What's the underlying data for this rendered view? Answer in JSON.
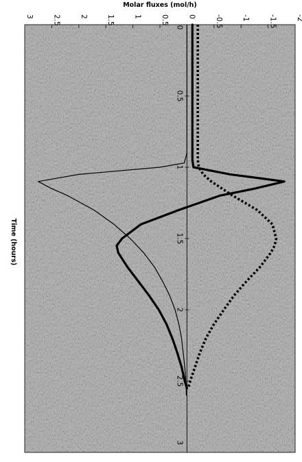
{
  "chart_data": {
    "type": "line",
    "orientation": "rotated-90-clockwise",
    "xlabel": "Time (hours)",
    "ylabel": "Molar fluxes (mol/h)",
    "xlim": [
      0,
      3
    ],
    "ylim": [
      -2,
      3
    ],
    "x_ticks": [
      "0",
      "0.5",
      "1",
      "1.5",
      "2",
      "2.5",
      "3"
    ],
    "y_ticks": [
      "-2",
      "-1.5",
      "-1",
      "-0.5",
      "0",
      "0.5",
      "1",
      "1.5",
      "2",
      "2.5",
      "3"
    ],
    "background": "grey-speckled",
    "grid": false,
    "series": [
      {
        "style": "thin-solid",
        "x": [
          0,
          0.5,
          0.9,
          0.97,
          1.0,
          1.05,
          1.1,
          1.15,
          1.2,
          1.3,
          1.4,
          1.5,
          1.6,
          1.7,
          1.8,
          1.9,
          2.0,
          2.1,
          2.2,
          2.3,
          2.4,
          2.5,
          2.6
        ],
        "y": [
          0,
          0,
          0,
          0.05,
          0.5,
          2.0,
          2.75,
          2.5,
          2.2,
          1.72,
          1.35,
          1.05,
          0.8,
          0.6,
          0.45,
          0.32,
          0.22,
          0.15,
          0.1,
          0.07,
          0.04,
          0.02,
          0.01
        ]
      },
      {
        "style": "thick-solid",
        "x": [
          0,
          0.5,
          0.95,
          1.0,
          1.05,
          1.1,
          1.15,
          1.2,
          1.3,
          1.4,
          1.5,
          1.55,
          1.6,
          1.7,
          1.8,
          1.9,
          2.0,
          2.1,
          2.2,
          2.3,
          2.4,
          2.5,
          2.55
        ],
        "y": [
          -0.1,
          -0.1,
          -0.1,
          -0.12,
          -0.8,
          -1.8,
          -1.25,
          -0.6,
          0.15,
          0.85,
          1.2,
          1.3,
          1.27,
          1.1,
          0.9,
          0.7,
          0.52,
          0.38,
          0.27,
          0.18,
          0.1,
          0.04,
          0.0
        ]
      },
      {
        "style": "thick-dotted",
        "x": [
          0,
          0.5,
          0.95,
          1.0,
          1.05,
          1.1,
          1.2,
          1.3,
          1.4,
          1.5,
          1.55,
          1.6,
          1.7,
          1.8,
          1.9,
          2.0,
          2.1,
          2.2,
          2.3,
          2.4,
          2.5,
          2.55
        ],
        "y": [
          -0.2,
          -0.2,
          -0.2,
          -0.22,
          -0.3,
          -0.45,
          -0.85,
          -1.3,
          -1.58,
          -1.65,
          -1.62,
          -1.55,
          -1.35,
          -1.1,
          -0.87,
          -0.68,
          -0.5,
          -0.35,
          -0.24,
          -0.15,
          -0.06,
          -0.02
        ]
      }
    ]
  }
}
